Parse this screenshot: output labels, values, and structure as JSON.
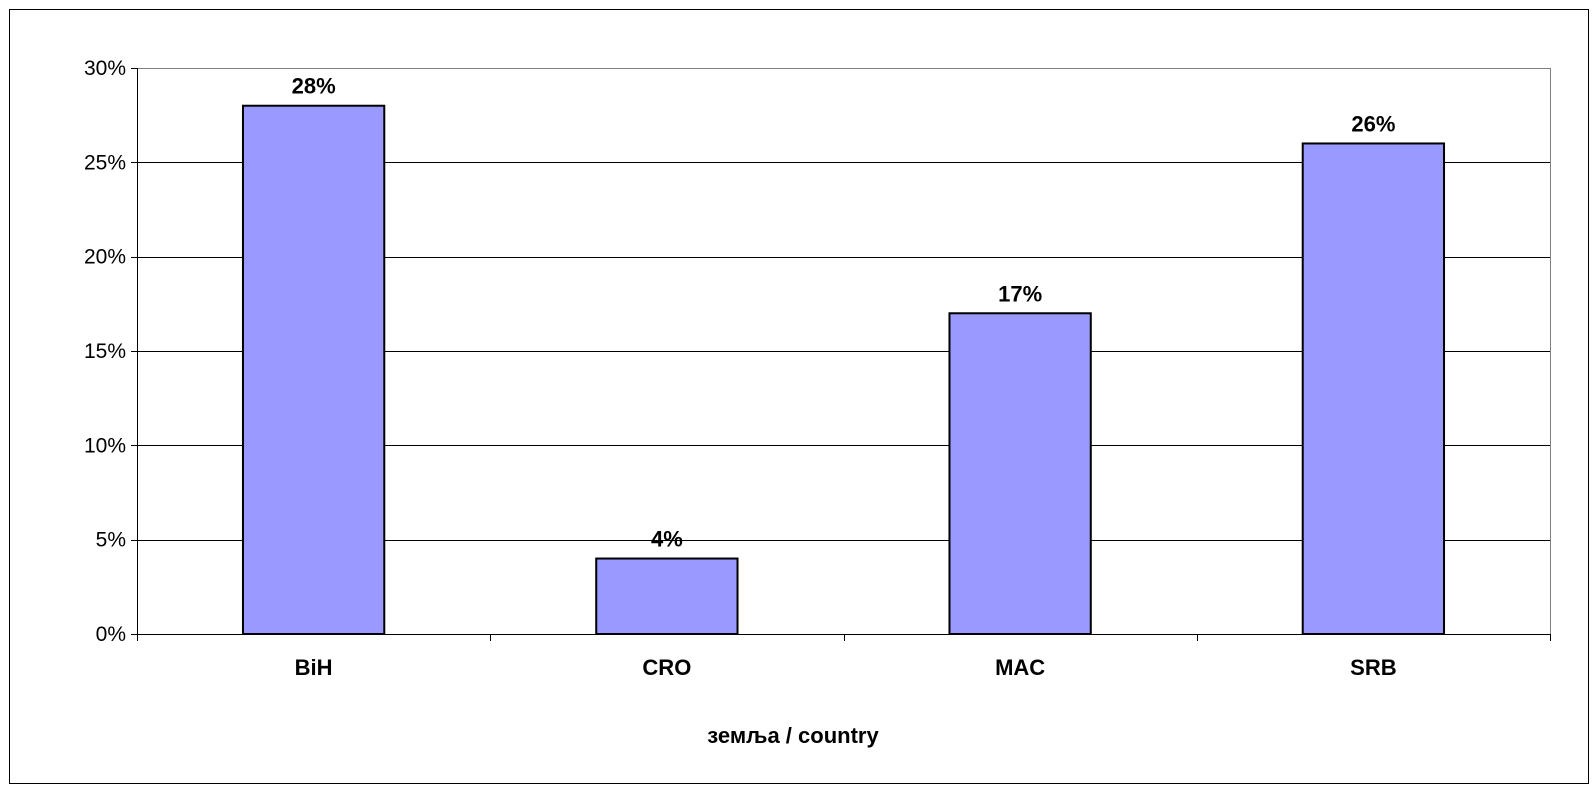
{
  "chart_data": {
    "type": "bar",
    "categories": [
      "BiH",
      "CRO",
      "MAC",
      "SRB"
    ],
    "values": [
      28,
      4,
      17,
      26
    ],
    "data_labels": [
      "28%",
      "4%",
      "17%",
      "26%"
    ],
    "title": "",
    "xlabel": "земља / country",
    "ylabel": "",
    "ylim": [
      0,
      30
    ],
    "yticks": [
      0,
      5,
      10,
      15,
      20,
      25,
      30
    ],
    "ytick_labels": [
      "0%",
      "5%",
      "10%",
      "15%",
      "20%",
      "25%",
      "30%"
    ],
    "grid": true,
    "legend": "none",
    "colors": {
      "bar_fill": "#9999ff",
      "bar_stroke": "#000000",
      "gridline": "#000000",
      "plot_border": "#808080"
    }
  }
}
